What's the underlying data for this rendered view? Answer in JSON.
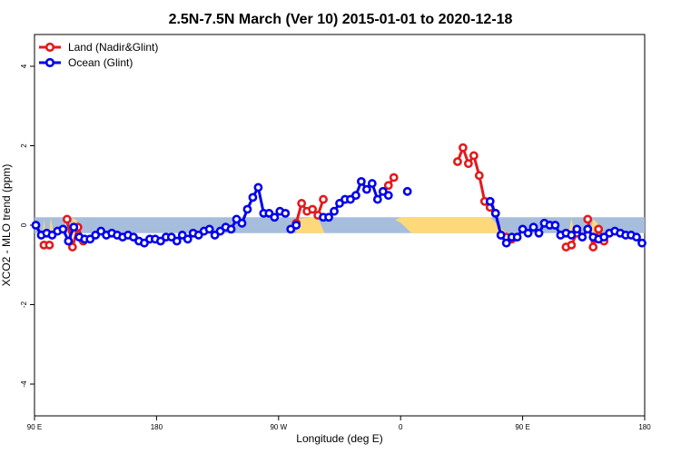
{
  "chart_data": {
    "type": "line",
    "title": "2.5N-7.5N March (Ver 10)   2015-01-01 to 2020-12-18",
    "xlabel": "Longitude (deg E)",
    "ylabel": "XCO2 - MLO trend (ppm)",
    "xlim": [
      90,
      450
    ],
    "ylim": [
      -4.8,
      4.8
    ],
    "x_ticks": [
      {
        "value": 90,
        "label": "90 E"
      },
      {
        "value": 180,
        "label": "180"
      },
      {
        "value": 270,
        "label": "90 W"
      },
      {
        "value": 360,
        "label": "0"
      },
      {
        "value": 450,
        "label": "90 E"
      },
      {
        "value": 540,
        "label": "180"
      }
    ],
    "x_display_range": [
      90,
      540
    ],
    "y_ticks": [
      -4,
      -2,
      0,
      2,
      4
    ],
    "legend_position": "top-left",
    "band": {
      "y_min": -0.2,
      "y_max": 0.2,
      "color": "#a6bddb"
    },
    "land_mask_color": "#fdd97a",
    "series": [
      {
        "name": "Land (Nadir&Glint)",
        "color": "#e41a1c",
        "segments": [
          {
            "x": [
              97,
              101
            ],
            "y": [
              -0.5,
              -0.5
            ]
          },
          {
            "x": [
              114,
              118,
              122,
              126
            ],
            "y": [
              0.15,
              -0.55,
              -0.05,
              -0.4
            ]
          },
          {
            "x": [
              283,
              287,
              291,
              295,
              299,
              303
            ],
            "y": [
              0.05,
              0.55,
              0.35,
              0.4,
              0.25,
              0.65
            ]
          },
          {
            "x": [
              351,
              355
            ],
            "y": [
              1.0,
              1.2
            ]
          },
          {
            "x": [
              402,
              406,
              410,
              414,
              418,
              422,
              426,
              430,
              434,
              438,
              442
            ],
            "y": [
              1.6,
              1.95,
              1.55,
              1.75,
              1.25,
              0.6,
              0.45,
              0.3,
              -0.25,
              -0.3,
              -0.35
            ]
          },
          {
            "x": [
              482,
              486,
              490
            ],
            "y": [
              -0.55,
              -0.5,
              -0.2
            ]
          },
          {
            "x": [
              498,
              502,
              506,
              510
            ],
            "y": [
              0.15,
              -0.55,
              -0.1,
              -0.4
            ]
          }
        ]
      },
      {
        "name": "Ocean (Glint)",
        "color": "#0000ee",
        "segments": [
          {
            "x": [
              91,
              95,
              99,
              103,
              107,
              111,
              115,
              119
            ],
            "y": [
              0.0,
              -0.25,
              -0.2,
              -0.25,
              -0.15,
              -0.1,
              -0.4,
              -0.05
            ]
          },
          {
            "x": [
              123,
              127,
              131,
              135,
              139,
              143,
              147,
              151,
              155,
              159,
              163,
              167,
              171,
              175,
              179,
              183,
              187,
              191,
              195,
              199,
              203,
              207,
              211,
              215,
              219,
              223,
              227,
              231,
              235,
              239,
              243,
              247,
              251,
              255,
              259,
              263,
              267,
              271,
              275
            ],
            "y": [
              -0.3,
              -0.35,
              -0.35,
              -0.25,
              -0.15,
              -0.25,
              -0.2,
              -0.25,
              -0.3,
              -0.25,
              -0.3,
              -0.4,
              -0.45,
              -0.35,
              -0.35,
              -0.4,
              -0.3,
              -0.3,
              -0.4,
              -0.25,
              -0.35,
              -0.2,
              -0.25,
              -0.15,
              -0.1,
              -0.25,
              -0.15,
              -0.05,
              -0.1,
              0.15,
              0.05,
              0.4,
              0.7,
              0.95,
              0.3,
              0.3,
              0.2,
              0.35,
              0.3
            ]
          },
          {
            "x": [
              279,
              283
            ],
            "y": [
              -0.1,
              0.0
            ]
          },
          {
            "x": [
              303,
              307,
              311,
              315,
              319,
              323,
              327,
              331,
              335,
              339,
              343,
              347,
              351
            ],
            "y": [
              0.2,
              0.2,
              0.35,
              0.55,
              0.65,
              0.65,
              0.75,
              1.1,
              0.9,
              1.05,
              0.65,
              0.85,
              0.75
            ]
          },
          {
            "x": [
              365
            ],
            "y": [
              0.85
            ]
          },
          {
            "x": [
              426,
              430,
              434,
              438,
              442,
              446,
              450,
              454,
              458,
              462,
              466,
              470,
              474,
              478,
              482,
              486,
              490,
              494,
              498,
              502,
              506,
              510,
              514,
              518,
              522,
              526,
              530,
              534,
              538
            ],
            "y": [
              0.6,
              0.3,
              -0.25,
              -0.45,
              -0.3,
              -0.3,
              -0.1,
              -0.2,
              -0.05,
              -0.2,
              0.05,
              0.0,
              0.0,
              -0.25,
              -0.2,
              -0.25,
              -0.1,
              -0.3,
              -0.1,
              -0.3,
              -0.35,
              -0.3,
              -0.2,
              -0.15,
              -0.2,
              -0.25,
              -0.25,
              -0.3,
              -0.45
            ]
          }
        ]
      }
    ]
  }
}
